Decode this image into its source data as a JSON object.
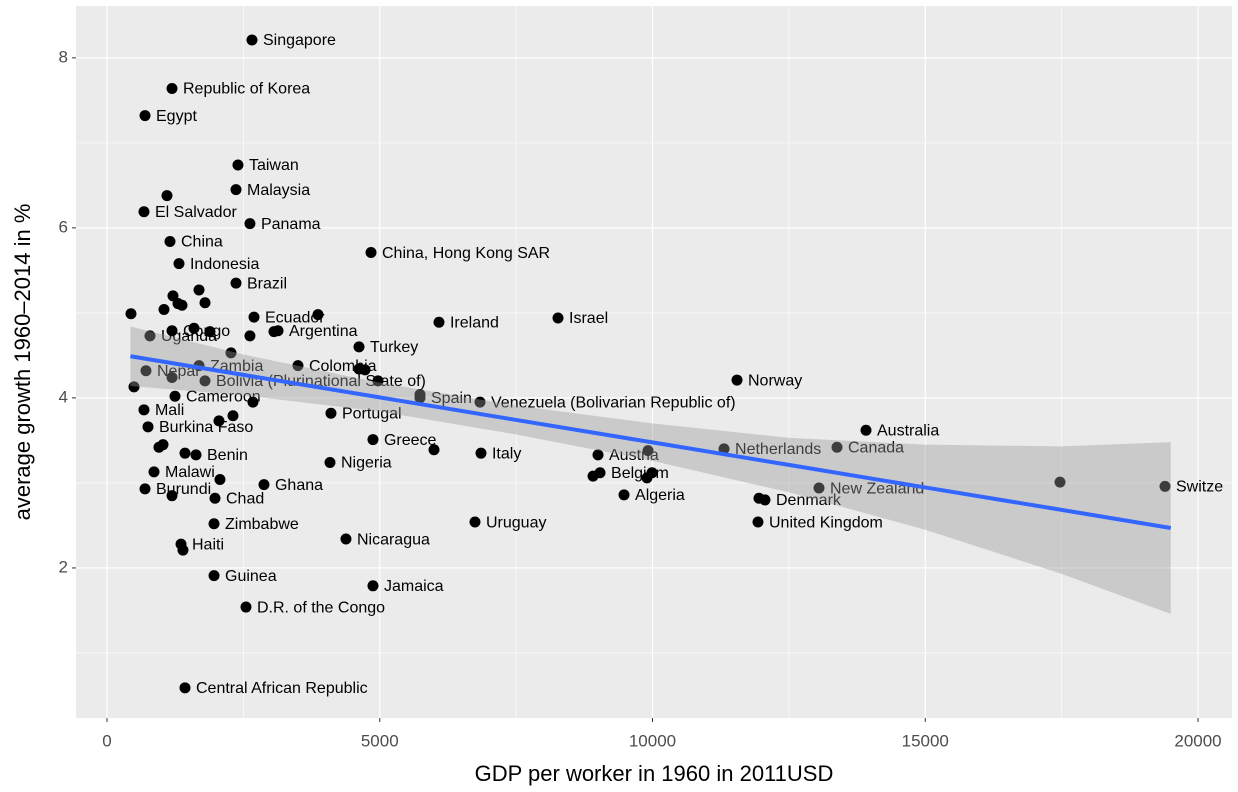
{
  "chart_data": {
    "type": "scatter",
    "x_label": "GDP per worker in 1960 in 2011USD",
    "y_label": "average growth 1960–2014 in %",
    "color": "#000000",
    "xlim": [
      -568,
      20623
    ],
    "ylim": [
      0.235,
      8.61
    ],
    "xticks": [
      0,
      5000,
      10000,
      15000,
      20000
    ],
    "yticks": [
      2,
      4,
      6,
      8
    ],
    "x_minor_ticks": [
      2500,
      7500,
      12500,
      17500
    ],
    "y_minor_ticks": [
      1,
      3,
      5,
      7
    ],
    "grid": true,
    "x": [
      2658,
      1192,
      697,
      2401,
      2365,
      678,
      2621,
      1155,
      4840,
      1320,
      2365,
      1192,
      2695,
      3135,
      6086,
      8268,
      788,
      4620,
      3501,
      1687,
      715,
      1797,
      5738,
      6838,
      11549,
      1247,
      678,
      4106,
      752,
      13914,
      4876,
      13382,
      11311,
      1632,
      6856,
      9001,
      4088,
      9038,
      862,
      9478,
      2878,
      697,
      13052,
      12062,
      19395,
      1980,
      6746,
      11934,
      1962,
      4381,
      1357,
      1962,
      4876,
      2548,
      1430,
      440,
      1100,
      1045,
      1210,
      1302,
      1375,
      1687,
      1797,
      1595,
      1888,
      2621,
      3061,
      3868,
      4620,
      4730,
      4968,
      2273,
      1192,
      495,
      2053,
      2310,
      2676,
      5738,
      953,
      1027,
      1430,
      2071,
      1192,
      5995,
      8910,
      9918,
      9991,
      9899,
      11952,
      17470,
      1393
    ],
    "values": [
      8.21,
      7.64,
      7.32,
      6.74,
      6.45,
      6.19,
      6.05,
      5.84,
      5.71,
      5.58,
      5.35,
      4.79,
      4.95,
      4.79,
      4.89,
      4.94,
      4.73,
      4.6,
      4.38,
      4.38,
      4.32,
      4.2,
      4.0,
      3.95,
      4.21,
      4.02,
      3.86,
      3.82,
      3.66,
      3.62,
      3.51,
      3.42,
      3.4,
      3.33,
      3.35,
      3.33,
      3.24,
      3.12,
      3.13,
      2.86,
      2.98,
      2.93,
      2.94,
      2.8,
      2.96,
      2.82,
      2.54,
      2.54,
      2.52,
      2.34,
      2.28,
      1.91,
      1.79,
      1.54,
      0.59,
      4.99,
      6.38,
      5.04,
      5.2,
      5.11,
      5.09,
      5.27,
      5.12,
      4.82,
      4.78,
      4.73,
      4.78,
      4.98,
      4.34,
      4.33,
      4.2,
      4.53,
      4.24,
      4.13,
      3.73,
      3.79,
      3.95,
      4.04,
      3.42,
      3.45,
      3.35,
      3.04,
      2.85,
      3.39,
      3.08,
      3.38,
      3.12,
      3.06,
      2.82,
      3.01,
      2.21
    ],
    "labels": [
      "Singapore",
      "Republic of Korea",
      "Egypt",
      "Taiwan",
      "Malaysia",
      "El Salvador",
      "Panama",
      "China",
      "China, Hong Kong SAR",
      "Indonesia",
      "Brazil",
      "Congo",
      "Ecuador",
      "Argentina",
      "Ireland",
      "Israel",
      "Uganda",
      "Turkey",
      "Colombia",
      "Zambia",
      "Nepal",
      "Bolivia (Plurinational State of)",
      "Spain",
      "Venezuela (Bolivarian Republic of)",
      "Norway",
      "Cameroon",
      "Mali",
      "Portugal",
      "Burkina Faso",
      "Australia",
      "Greece",
      "Canada",
      "Netherlands",
      "Benin",
      "Italy",
      "Austria",
      "Nigeria",
      "Belgium",
      "Malawi",
      "Algeria",
      "Ghana",
      "Burundi",
      "New Zealand",
      "Denmark",
      "Switze",
      "Chad",
      "Uruguay",
      "United Kingdom",
      "Zimbabwe",
      "Nicaragua",
      "Haiti",
      "Guinea",
      "Jamaica",
      "D.R. of the Congo",
      "Central African Republic",
      null,
      null,
      null,
      null,
      null,
      null,
      null,
      null,
      null,
      null,
      null,
      null,
      null,
      null,
      null,
      null,
      null,
      null,
      null,
      null,
      null,
      null,
      null,
      null,
      null,
      null,
      null,
      null,
      null,
      null,
      null,
      null,
      null,
      null,
      null,
      null
    ],
    "trend": {
      "color": "#3366ff",
      "band_color": "#999999",
      "x": [
        430,
        2500,
        5000,
        7500,
        10000,
        12500,
        15000,
        17500,
        19500
      ],
      "values": [
        4.49,
        4.271,
        4.006,
        3.741,
        3.477,
        3.212,
        2.947,
        2.683,
        2.47
      ],
      "upper": [
        4.84,
        4.51,
        4.18,
        3.91,
        3.7,
        3.53,
        3.45,
        3.43,
        3.48
      ],
      "lower": [
        4.14,
        4.03,
        3.84,
        3.57,
        3.26,
        2.89,
        2.45,
        1.93,
        1.46
      ]
    }
  }
}
